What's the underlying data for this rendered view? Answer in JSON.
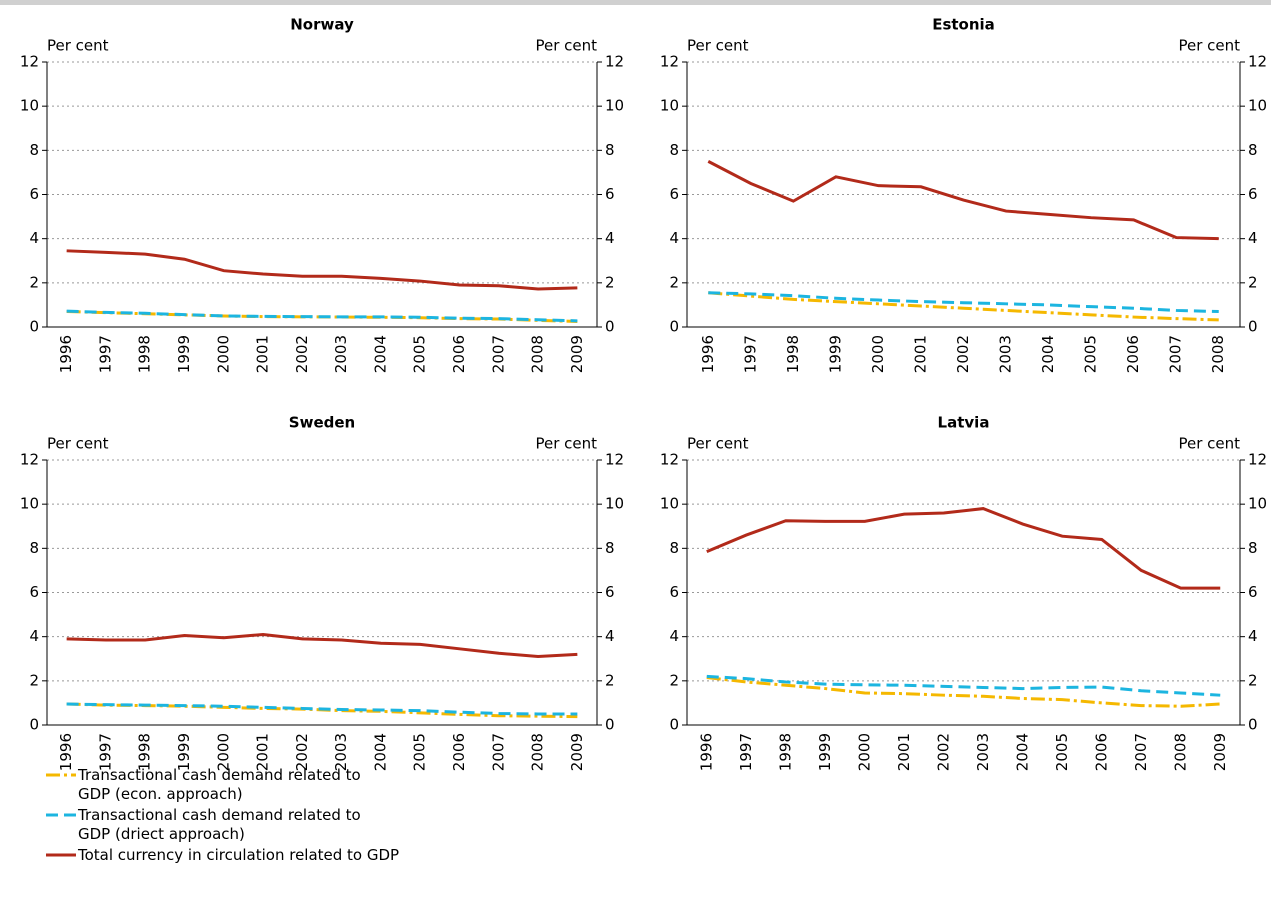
{
  "chart_data": [
    {
      "type": "line",
      "title": "Norway",
      "ylabel": "Per cent",
      "y2label": "Per cent",
      "categories": [
        "1996",
        "1997",
        "1998",
        "1999",
        "2000",
        "2001",
        "2002",
        "2003",
        "2004",
        "2005",
        "2006",
        "2007",
        "2008",
        "2009"
      ],
      "ylim": [
        0,
        12
      ],
      "yticks": [
        0,
        2,
        4,
        6,
        8,
        10,
        12
      ],
      "y2lim": [
        0,
        12
      ],
      "y2ticks": [
        0,
        2,
        4,
        6,
        8,
        10,
        12
      ],
      "grid": true,
      "series": [
        {
          "name": "Transactional cash demand related to GDP (econ. approach)",
          "color": "#f5b800",
          "style": "dash-dot",
          "values": [
            0.7,
            0.65,
            0.6,
            0.55,
            0.5,
            0.47,
            0.46,
            0.45,
            0.44,
            0.42,
            0.38,
            0.36,
            0.3,
            0.25
          ]
        },
        {
          "name": "Transactional cash demand related to GDP (driect approach)",
          "color": "#1cb5e0",
          "style": "dash",
          "values": [
            0.72,
            0.66,
            0.62,
            0.56,
            0.5,
            0.48,
            0.47,
            0.46,
            0.46,
            0.44,
            0.4,
            0.38,
            0.33,
            0.28
          ]
        },
        {
          "name": "Total currency in circulation related to GDP",
          "color": "#b22a1a",
          "style": "solid",
          "values": [
            3.45,
            3.38,
            3.3,
            3.07,
            2.55,
            2.4,
            2.3,
            2.3,
            2.2,
            2.08,
            1.9,
            1.87,
            1.72,
            1.77
          ]
        }
      ]
    },
    {
      "type": "line",
      "title": "Estonia",
      "ylabel": "Per cent",
      "y2label": "Per cent",
      "categories": [
        "1996",
        "1997",
        "1998",
        "1999",
        "2000",
        "2001",
        "2002",
        "2003",
        "2004",
        "2005",
        "2006",
        "2007",
        "2008"
      ],
      "ylim": [
        0,
        12
      ],
      "yticks": [
        0,
        2,
        4,
        6,
        8,
        10,
        12
      ],
      "y2lim": [
        0,
        12
      ],
      "y2ticks": [
        0,
        2,
        4,
        6,
        8,
        10,
        12
      ],
      "grid": true,
      "series": [
        {
          "name": "Transactional cash demand related to GDP (econ. approach)",
          "color": "#f5b800",
          "style": "dash-dot",
          "values": [
            1.55,
            1.4,
            1.25,
            1.15,
            1.05,
            0.95,
            0.85,
            0.75,
            0.65,
            0.55,
            0.45,
            0.38,
            0.32
          ]
        },
        {
          "name": "Transactional cash demand related to GDP (driect approach)",
          "color": "#1cb5e0",
          "style": "dash",
          "values": [
            1.55,
            1.5,
            1.42,
            1.3,
            1.22,
            1.15,
            1.1,
            1.05,
            1.0,
            0.92,
            0.85,
            0.75,
            0.7
          ]
        },
        {
          "name": "Total currency in circulation related to GDP",
          "color": "#b22a1a",
          "style": "solid",
          "values": [
            7.5,
            6.5,
            5.7,
            6.8,
            6.4,
            6.35,
            5.75,
            5.25,
            5.1,
            4.95,
            4.85,
            4.05,
            4.0
          ]
        }
      ]
    },
    {
      "type": "line",
      "title": "Sweden",
      "ylabel": "Per cent",
      "y2label": "Per cent",
      "categories": [
        "1996",
        "1997",
        "1998",
        "1999",
        "2000",
        "2001",
        "2002",
        "2003",
        "2004",
        "2005",
        "2006",
        "2007",
        "2008",
        "2009"
      ],
      "ylim": [
        0,
        12
      ],
      "yticks": [
        0,
        2,
        4,
        6,
        8,
        10,
        12
      ],
      "y2lim": [
        0,
        12
      ],
      "y2ticks": [
        0,
        2,
        4,
        6,
        8,
        10,
        12
      ],
      "grid": true,
      "series": [
        {
          "name": "Transactional cash demand related to GDP (econ. approach)",
          "color": "#f5b800",
          "style": "dash-dot",
          "values": [
            0.95,
            0.9,
            0.88,
            0.85,
            0.8,
            0.75,
            0.72,
            0.65,
            0.62,
            0.55,
            0.48,
            0.42,
            0.4,
            0.38
          ]
        },
        {
          "name": "Transactional cash demand related to GDP (driect approach)",
          "color": "#1cb5e0",
          "style": "dash",
          "values": [
            0.95,
            0.92,
            0.9,
            0.88,
            0.85,
            0.8,
            0.75,
            0.7,
            0.68,
            0.65,
            0.58,
            0.52,
            0.5,
            0.5
          ]
        },
        {
          "name": "Total currency in circulation related to GDP",
          "color": "#b22a1a",
          "style": "solid",
          "values": [
            3.9,
            3.85,
            3.85,
            4.05,
            3.95,
            4.1,
            3.9,
            3.85,
            3.7,
            3.65,
            3.45,
            3.25,
            3.1,
            3.2
          ]
        }
      ]
    },
    {
      "type": "line",
      "title": "Latvia",
      "ylabel": "Per cent",
      "y2label": "Per cent",
      "categories": [
        "1996",
        "1997",
        "1998",
        "1999",
        "2000",
        "2001",
        "2002",
        "2003",
        "2004",
        "2005",
        "2006",
        "2007",
        "2008",
        "2009"
      ],
      "ylim": [
        0,
        12
      ],
      "yticks": [
        0,
        2,
        4,
        6,
        8,
        10,
        12
      ],
      "y2lim": [
        0,
        12
      ],
      "y2ticks": [
        0,
        2,
        4,
        6,
        8,
        10,
        12
      ],
      "grid": true,
      "series": [
        {
          "name": "Transactional cash demand related to GDP (econ. approach)",
          "color": "#f5b800",
          "style": "dash-dot",
          "values": [
            2.15,
            1.95,
            1.8,
            1.65,
            1.45,
            1.42,
            1.35,
            1.3,
            1.2,
            1.15,
            1.0,
            0.88,
            0.85,
            0.95
          ]
        },
        {
          "name": "Transactional cash demand related to GDP (driect approach)",
          "color": "#1cb5e0",
          "style": "dash",
          "values": [
            2.2,
            2.1,
            1.95,
            1.85,
            1.82,
            1.8,
            1.75,
            1.7,
            1.65,
            1.7,
            1.72,
            1.55,
            1.45,
            1.35
          ]
        },
        {
          "name": "Total currency in circulation related to GDP",
          "color": "#b22a1a",
          "style": "solid",
          "values": [
            7.85,
            8.6,
            9.25,
            9.22,
            9.22,
            9.55,
            9.6,
            9.8,
            9.1,
            8.55,
            8.4,
            7.0,
            6.2,
            6.2
          ]
        }
      ]
    }
  ]
}
